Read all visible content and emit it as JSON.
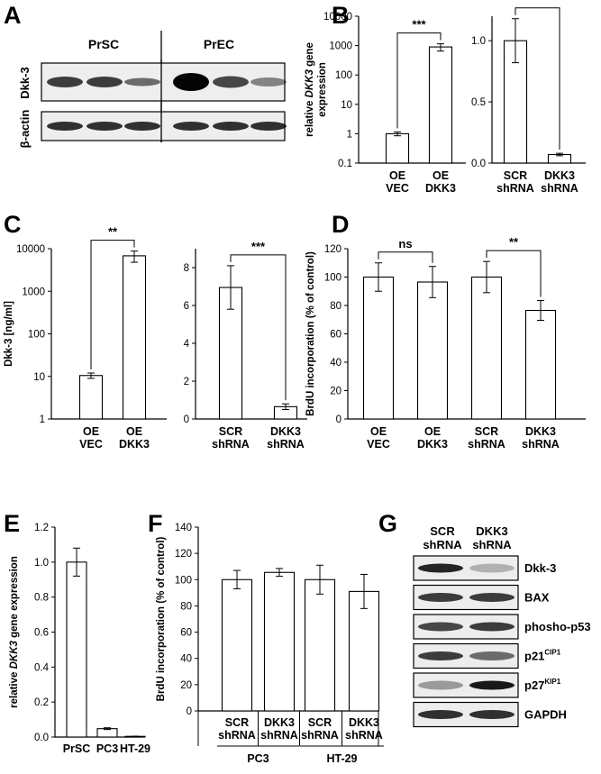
{
  "labels": {
    "A": "A",
    "B": "B",
    "C": "C",
    "D": "D",
    "E": "E",
    "F": "F",
    "G": "G"
  },
  "blotA": {
    "groups": [
      "PrSC",
      "PrEC"
    ],
    "rows": [
      "Dkk-3",
      "β-actin"
    ]
  },
  "blotG": {
    "columns": [
      [
        "SCR",
        "shRNA"
      ],
      [
        "DKK3",
        "shRNA"
      ]
    ],
    "rows": [
      {
        "name": "Dkk-3",
        "sup": ""
      },
      {
        "name": "BAX",
        "sup": ""
      },
      {
        "name": "phosho-p53",
        "sup": ""
      },
      {
        "name": "p21",
        "sup": "CIP1"
      },
      {
        "name": "p27",
        "sup": "KIP1"
      },
      {
        "name": "GAPDH",
        "sup": ""
      }
    ]
  },
  "chart_data": [
    {
      "id": "B-left",
      "type": "bar",
      "scale": "log",
      "ylabel_pre": "relative ",
      "ylabel_italic": "DKK3",
      "ylabel_post": " gene",
      "ylabel_line2": "expression",
      "categories": [
        [
          "OE",
          "VEC"
        ],
        [
          "OE",
          "DKK3"
        ]
      ],
      "values": [
        1,
        900
      ],
      "errors": [
        0.15,
        250
      ],
      "ylim": [
        0.1,
        10000
      ],
      "ticks": [
        0.1,
        1,
        10,
        100,
        1000,
        10000
      ],
      "tick_labels": [
        "0.1",
        "1",
        "10",
        "100",
        "1000",
        "10000"
      ],
      "significance": "***"
    },
    {
      "id": "B-right",
      "type": "bar",
      "scale": "linear",
      "categories": [
        [
          "SCR",
          "shRNA"
        ],
        [
          "DKK3",
          "shRNA"
        ]
      ],
      "values": [
        1.0,
        0.07
      ],
      "errors": [
        0.18,
        0.01
      ],
      "ylim": [
        0,
        1.2
      ],
      "ticks": [
        0,
        0.5,
        1.0
      ],
      "tick_labels": [
        "0.0",
        "0.5",
        "1.0"
      ],
      "significance": "***"
    },
    {
      "id": "C-left",
      "type": "bar",
      "scale": "log",
      "ylabel": "Dkk-3 [ng/ml]",
      "categories": [
        [
          "OE",
          "VEC"
        ],
        [
          "OE",
          "DKK3"
        ]
      ],
      "values": [
        10.5,
        6800
      ],
      "errors": [
        1.5,
        2000
      ],
      "ylim": [
        1,
        10000
      ],
      "ticks": [
        1,
        10,
        100,
        1000,
        10000
      ],
      "tick_labels": [
        "1",
        "10",
        "100",
        "1000",
        "10000"
      ],
      "significance": "**"
    },
    {
      "id": "C-right",
      "type": "bar",
      "scale": "linear",
      "categories": [
        [
          "SCR",
          "shRNA"
        ],
        [
          "DKK3",
          "shRNA"
        ]
      ],
      "values": [
        6.95,
        0.65
      ],
      "errors": [
        1.15,
        0.15
      ],
      "ylim": [
        0,
        9
      ],
      "ticks": [
        0,
        2,
        4,
        6,
        8
      ],
      "tick_labels": [
        "0",
        "2",
        "4",
        "6",
        "8"
      ],
      "significance": "***"
    },
    {
      "id": "D",
      "type": "bar",
      "scale": "linear",
      "ylabel": "BrdU incorporation (% of control)",
      "categories": [
        [
          "OE",
          "VEC"
        ],
        [
          "OE",
          "DKK3"
        ],
        [
          "SCR",
          "shRNA"
        ],
        [
          "DKK3",
          "shRNA"
        ]
      ],
      "values": [
        100,
        96.5,
        100,
        76.5
      ],
      "errors": [
        10,
        11,
        11,
        7
      ],
      "ylim": [
        0,
        120
      ],
      "ticks": [
        0,
        20,
        40,
        60,
        80,
        100,
        120
      ],
      "tick_labels": [
        "0",
        "20",
        "40",
        "60",
        "80",
        "100",
        "120"
      ],
      "significance": [
        {
          "pair": [
            0,
            1
          ],
          "label": "ns"
        },
        {
          "pair": [
            2,
            3
          ],
          "label": "**"
        }
      ]
    },
    {
      "id": "E",
      "type": "bar",
      "scale": "linear",
      "ylabel_pre": "relative ",
      "ylabel_italic": "DKK3",
      "ylabel_post": " gene expression",
      "categories": [
        [
          "PrSC"
        ],
        [
          "PC3"
        ],
        [
          "HT-29"
        ]
      ],
      "values": [
        1.0,
        0.048,
        0.004
      ],
      "errors": [
        0.08,
        0.005,
        0.001
      ],
      "ylim": [
        0,
        1.2
      ],
      "ticks": [
        0,
        0.2,
        0.4,
        0.6,
        0.8,
        1.0,
        1.2
      ],
      "tick_labels": [
        "0.0",
        "0.2",
        "0.4",
        "0.6",
        "0.8",
        "1.0",
        "1.2"
      ]
    },
    {
      "id": "F",
      "type": "bar",
      "scale": "linear",
      "ylabel": "BrdU incorporation (% of control)",
      "categories": [
        [
          "SCR",
          "shRNA"
        ],
        [
          "DKK3",
          "shRNA"
        ],
        [
          "SCR",
          "shRNA"
        ],
        [
          "DKK3",
          "shRNA"
        ]
      ],
      "values": [
        100,
        105.5,
        100,
        91
      ],
      "errors": [
        7,
        3,
        11,
        13
      ],
      "ylim": [
        0,
        140
      ],
      "ticks": [
        0,
        20,
        40,
        60,
        80,
        100,
        120,
        140
      ],
      "tick_labels": [
        "0",
        "20",
        "40",
        "60",
        "80",
        "100",
        "120",
        "140"
      ],
      "groups": [
        "PC3",
        "HT-29"
      ]
    }
  ]
}
